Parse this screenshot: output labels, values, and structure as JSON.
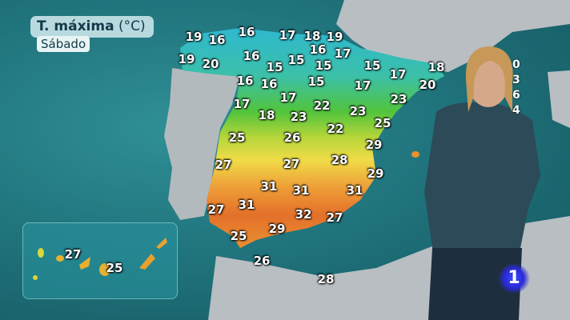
{
  "header": {
    "title_bold": "T. máxima",
    "title_unit": "(°C)",
    "day": "Sábado"
  },
  "peninsula_temperatures": [
    19,
    16,
    16,
    17,
    18,
    19,
    19,
    20,
    16,
    15,
    15,
    16,
    15,
    17,
    15,
    17,
    18,
    20,
    16,
    16,
    15,
    17,
    23,
    17,
    17,
    22,
    18,
    23,
    23,
    25,
    22,
    25,
    26,
    29,
    27,
    27,
    28,
    29,
    31,
    31,
    31,
    31,
    27,
    32,
    27,
    29,
    25,
    26,
    28
  ],
  "canarias_temperatures": [
    27,
    25
  ],
  "partially_hidden_values": [
    "0",
    "3",
    "6",
    "4"
  ],
  "channel_logo": "1",
  "colors": {
    "sea": "#1e6f78",
    "land_other": "#b8bec2",
    "cold": "#2fb8d0",
    "mild": "#4cc84a",
    "warm": "#f0e04a",
    "hot": "#e8702a",
    "very_hot": "#c8281e"
  }
}
